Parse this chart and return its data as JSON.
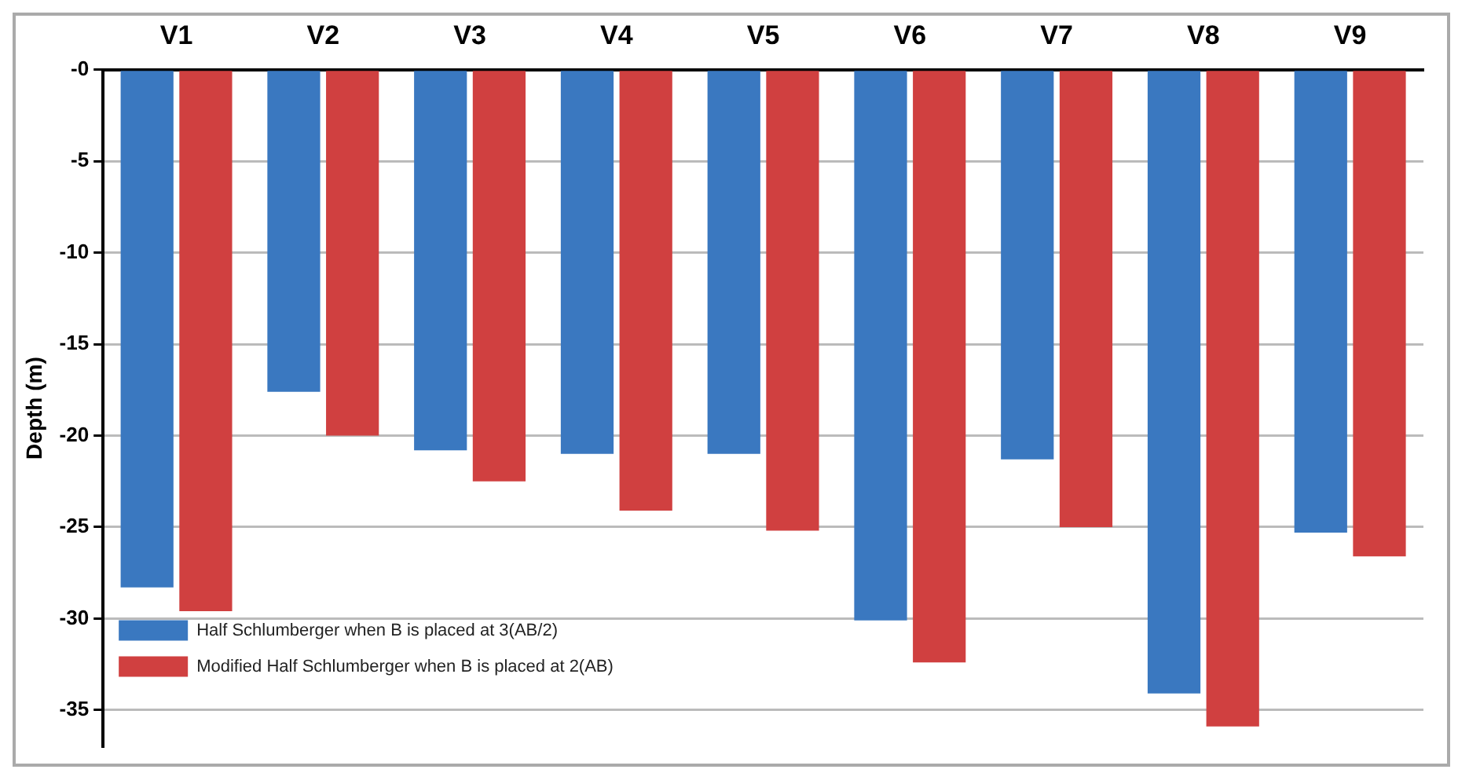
{
  "chart_data": {
    "type": "bar",
    "ylabel": "Depth (m)",
    "categories": [
      "V1",
      "V2",
      "V3",
      "V4",
      "V5",
      "V6",
      "V7",
      "V8",
      "V9"
    ],
    "series": [
      {
        "name": "Half Schlumberger when B is placed at 3(AB/2)",
        "color": "#3a78c0",
        "values": [
          -28.3,
          -17.6,
          -20.8,
          -21.0,
          -21.0,
          -30.1,
          -21.3,
          -34.1,
          -25.3
        ]
      },
      {
        "name": "Modified Half Schlumberger when B is placed at 2(AB)",
        "color": "#d04040",
        "values": [
          -29.6,
          -20.0,
          -22.5,
          -24.1,
          -25.2,
          -32.4,
          -25.0,
          -35.9,
          -26.6
        ]
      }
    ],
    "ylim": [
      -37,
      0
    ],
    "yticks": [
      {
        "value": 0,
        "label": "-0"
      },
      -5,
      -10,
      -15,
      -20,
      -25,
      -30,
      -35
    ],
    "grid": "y",
    "legend": "bottom left"
  }
}
